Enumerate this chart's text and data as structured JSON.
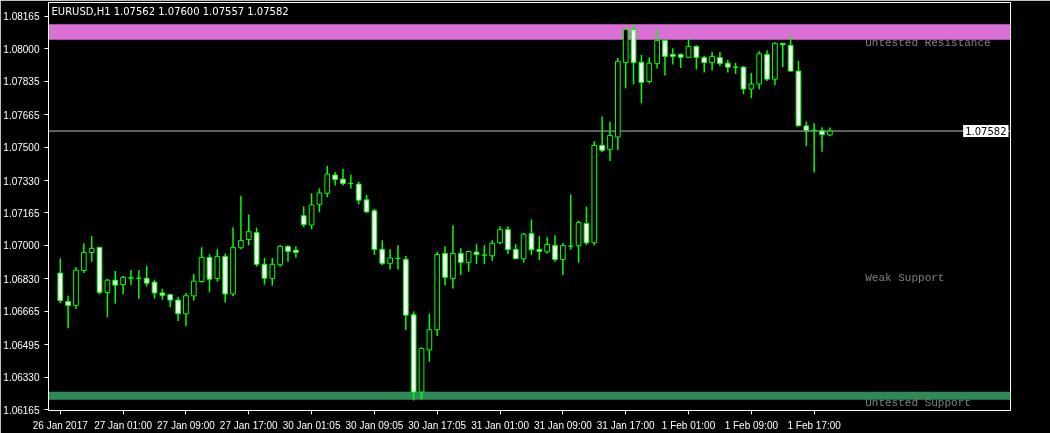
{
  "chart_data": {
    "type": "candlestick",
    "title": "EURUSD,H1  1.07562 1.07600 1.07557 1.07582",
    "categories": [
      "26 Jan 2017",
      null,
      null,
      null,
      null,
      null,
      null,
      null,
      "27 Jan 01:00",
      null,
      null,
      null,
      null,
      null,
      null,
      null,
      "27 Jan 09:00",
      null,
      null,
      null,
      null,
      null,
      null,
      null,
      "27 Jan 17:00",
      null,
      null,
      null,
      null,
      null,
      null,
      null,
      "30 Jan 01:05",
      null,
      null,
      null,
      null,
      null,
      null,
      null,
      "30 Jan 09:05",
      null,
      null,
      null,
      null,
      null,
      null,
      null,
      "30 Jan 17:05",
      null,
      null,
      null,
      null,
      null,
      null,
      null,
      "31 Jan 01:00",
      null,
      null,
      null,
      null,
      null,
      null,
      null,
      "31 Jan 09:00",
      null,
      null,
      null,
      null,
      null,
      null,
      null,
      "31 Jan 17:00",
      null,
      null,
      null,
      null,
      null,
      null,
      null,
      "1 Feb 01:00",
      null,
      null,
      null,
      null,
      null,
      null,
      null,
      "1 Feb 09:00",
      null,
      null,
      null,
      null,
      null,
      null,
      null,
      "1 Feb 17:00",
      null,
      null
    ],
    "color": "#00ff00",
    "ohlc": [
      [
        1.06859,
        1.06934,
        1.06707,
        1.06719
      ],
      [
        1.06715,
        1.06744,
        1.06578,
        1.06695
      ],
      [
        1.06695,
        1.06889,
        1.06677,
        1.06874
      ],
      [
        1.06872,
        1.07011,
        1.06859,
        1.06964
      ],
      [
        1.06964,
        1.07047,
        1.06917,
        1.06985
      ],
      [
        1.0699,
        1.06993,
        1.06751,
        1.06761
      ],
      [
        1.06761,
        1.0683,
        1.06635,
        1.06823
      ],
      [
        1.06823,
        1.0687,
        1.06704,
        1.06798
      ],
      [
        1.06801,
        1.06845,
        1.06751,
        1.06838
      ],
      [
        1.06833,
        1.06875,
        1.068,
        1.06836
      ],
      [
        1.06833,
        1.06875,
        1.06729,
        1.06833
      ],
      [
        1.06833,
        1.06895,
        1.06791,
        1.06808
      ],
      [
        1.06813,
        1.06825,
        1.06729,
        1.06758
      ],
      [
        1.06758,
        1.06779,
        1.06724,
        1.06746
      ],
      [
        1.06749,
        1.06754,
        1.06685,
        1.06722
      ],
      [
        1.06722,
        1.06739,
        1.06615,
        1.06652
      ],
      [
        1.06652,
        1.06758,
        1.06589,
        1.06744
      ],
      [
        1.06743,
        1.06855,
        1.0672,
        1.06818
      ],
      [
        1.06816,
        1.06991,
        1.06811,
        1.06939
      ],
      [
        1.06939,
        1.06956,
        1.06761,
        1.06828
      ],
      [
        1.06831,
        1.06981,
        1.06816,
        1.06944
      ],
      [
        1.06944,
        1.06959,
        1.0671,
        1.06753
      ],
      [
        1.06753,
        1.07092,
        1.06741,
        1.0699
      ],
      [
        1.06988,
        1.07253,
        1.06981,
        1.07025
      ],
      [
        1.0703,
        1.07157,
        1.07001,
        1.0707
      ],
      [
        1.07065,
        1.0709,
        1.06892,
        1.06904
      ],
      [
        1.06904,
        1.06936,
        1.068,
        1.06833
      ],
      [
        1.06831,
        1.06936,
        1.06795,
        1.06904
      ],
      [
        1.06902,
        1.07001,
        1.06892,
        1.06995
      ],
      [
        1.06995,
        1.07001,
        1.06917,
        1.06969
      ],
      [
        1.06976,
        1.06996,
        1.06937,
        1.06964
      ],
      [
        1.07151,
        1.07198,
        1.07093,
        1.07106
      ],
      [
        1.07104,
        1.07265,
        1.07082,
        1.07206
      ],
      [
        1.07209,
        1.0729,
        1.07169,
        1.07267
      ],
      [
        1.07265,
        1.07404,
        1.07245,
        1.07363
      ],
      [
        1.07358,
        1.07374,
        1.07305,
        1.07335
      ],
      [
        1.07337,
        1.07389,
        1.07305,
        1.07315
      ],
      [
        1.07315,
        1.07359,
        1.0729,
        1.07315
      ],
      [
        1.07312,
        1.07324,
        1.07209,
        1.0723
      ],
      [
        1.07232,
        1.07258,
        1.07164,
        1.07171
      ],
      [
        1.07176,
        1.07186,
        1.06952,
        1.0698
      ],
      [
        1.0698,
        1.07026,
        1.069,
        1.06909
      ],
      [
        1.06909,
        1.06981,
        1.06877,
        1.06936
      ],
      [
        1.06934,
        1.07001,
        1.06877,
        1.06934
      ],
      [
        1.06929,
        1.06946,
        1.06569,
        1.06645
      ],
      [
        1.06647,
        1.06664,
        1.06211,
        1.06254
      ],
      [
        1.06254,
        1.06481,
        1.06217,
        1.06476
      ],
      [
        1.06468,
        1.06653,
        1.06408,
        1.06571
      ],
      [
        1.06571,
        1.06966,
        1.06539,
        1.06954
      ],
      [
        1.06959,
        1.06996,
        1.06796,
        1.06838
      ],
      [
        1.06831,
        1.07102,
        1.06781,
        1.06959
      ],
      [
        1.06959,
        1.06985,
        1.0685,
        1.06914
      ],
      [
        1.06914,
        1.06969,
        1.06867,
        1.06969
      ],
      [
        1.06966,
        1.07006,
        1.06905,
        1.06954
      ],
      [
        1.06951,
        1.07001,
        1.06905,
        1.06951
      ],
      [
        1.06947,
        1.07026,
        1.06922,
        1.07011
      ],
      [
        1.07013,
        1.07097,
        1.07006,
        1.0708
      ],
      [
        1.0708,
        1.07097,
        1.06956,
        1.06978
      ],
      [
        1.0698,
        1.07006,
        1.06932,
        1.06932
      ],
      [
        1.06932,
        1.07063,
        1.06912,
        1.07057
      ],
      [
        1.0706,
        1.07132,
        1.06951,
        1.06978
      ],
      [
        1.0698,
        1.07047,
        1.06926,
        1.06969
      ],
      [
        1.06967,
        1.07042,
        1.06957,
        1.07005
      ],
      [
        1.07,
        1.07052,
        1.06917,
        1.06929
      ],
      [
        1.06929,
        1.07011,
        1.0685,
        1.07
      ],
      [
        1.06996,
        1.07258,
        1.06978,
        1.06996
      ],
      [
        1.06998,
        1.07127,
        1.06912,
        1.07116
      ],
      [
        1.07111,
        1.07198,
        1.07001,
        1.07013
      ],
      [
        1.07013,
        1.0753,
        1.07001,
        1.07509
      ],
      [
        1.07509,
        1.07656,
        1.07475,
        1.07484
      ],
      [
        1.07489,
        1.07631,
        1.0743,
        1.07559
      ],
      [
        1.07552,
        1.07954,
        1.07485,
        1.07937
      ],
      [
        1.0793,
        1.08105,
        1.07799,
        1.08098
      ],
      [
        1.08098,
        1.08124,
        1.07819,
        1.0793
      ],
      [
        1.07932,
        1.07969,
        1.07723,
        1.07829
      ],
      [
        1.07834,
        1.07957,
        1.07824,
        1.07927
      ],
      [
        1.07925,
        1.08098,
        1.079,
        1.08043
      ],
      [
        1.08043,
        1.08051,
        1.07865,
        1.07962
      ],
      [
        1.07972,
        1.08003,
        1.0792,
        1.07962
      ],
      [
        1.07972,
        1.07977,
        1.07903,
        1.07957
      ],
      [
        1.07957,
        1.0805,
        1.07957,
        1.08013
      ],
      [
        1.08013,
        1.08018,
        1.07895,
        1.07957
      ],
      [
        1.07955,
        1.07965,
        1.0788,
        1.0793
      ],
      [
        1.0793,
        1.07984,
        1.0789,
        1.07962
      ],
      [
        1.07955,
        1.07984,
        1.07913,
        1.07925
      ],
      [
        1.07927,
        1.07944,
        1.0788,
        1.07907
      ],
      [
        1.07907,
        1.07929,
        1.07873,
        1.07907
      ],
      [
        1.07907,
        1.07913,
        1.07769,
        1.07796
      ],
      [
        1.07796,
        1.07878,
        1.07749,
        1.07821
      ],
      [
        1.07821,
        1.07988,
        1.07794,
        1.07975
      ],
      [
        1.07972,
        1.07993,
        1.07836,
        1.07846
      ],
      [
        1.07846,
        1.08034,
        1.07816,
        1.08028
      ],
      [
        1.08028,
        1.08029,
        1.07908,
        1.08021
      ],
      [
        1.08018,
        1.08073,
        1.07887,
        1.07887
      ],
      [
        1.07887,
        1.07939,
        1.07603,
        1.0761
      ],
      [
        1.07608,
        1.07631,
        1.07505,
        1.07584
      ],
      [
        1.07586,
        1.07621,
        1.07371,
        1.07586
      ],
      [
        1.07582,
        1.07601,
        1.07477,
        1.07564
      ],
      [
        1.07562,
        1.076,
        1.07557,
        1.07582
      ]
    ],
    "ylim": [
      1.0616,
      1.08236
    ],
    "yticks": [
      {
        "value": 1.08165,
        "label": "1.08165"
      },
      {
        "value": 1.08,
        "label": "1.08000"
      },
      {
        "value": 1.07835,
        "label": "1.07835"
      },
      {
        "value": 1.07665,
        "label": "1.07665"
      },
      {
        "value": 1.075,
        "label": "1.07500"
      },
      {
        "value": 1.0733,
        "label": "1.07330"
      },
      {
        "value": 1.07165,
        "label": "1.07165"
      },
      {
        "value": 1.07,
        "label": "1.07000"
      },
      {
        "value": 1.0683,
        "label": "1.06830"
      },
      {
        "value": 1.06665,
        "label": "1.06665"
      },
      {
        "value": 1.06495,
        "label": "1.06495"
      },
      {
        "value": 1.0633,
        "label": "1.06330"
      },
      {
        "value": 1.06165,
        "label": "1.06165"
      }
    ],
    "ref_lines": [
      {
        "axis": "y",
        "value": 1.07582,
        "label": "1.07582",
        "color": "#c0c0c0"
      }
    ],
    "bands": [
      {
        "axis": "y",
        "from": 1.08047,
        "to": 1.08125,
        "label": "Untested Resistance",
        "color": "#da70d6"
      },
      {
        "axis": "y",
        "from": 1.06215,
        "to": 1.06255,
        "label": "Untested Support",
        "color": "#2e8b57"
      }
    ],
    "annotations": [
      "Weak Support"
    ],
    "grid": false,
    "legend": false
  }
}
